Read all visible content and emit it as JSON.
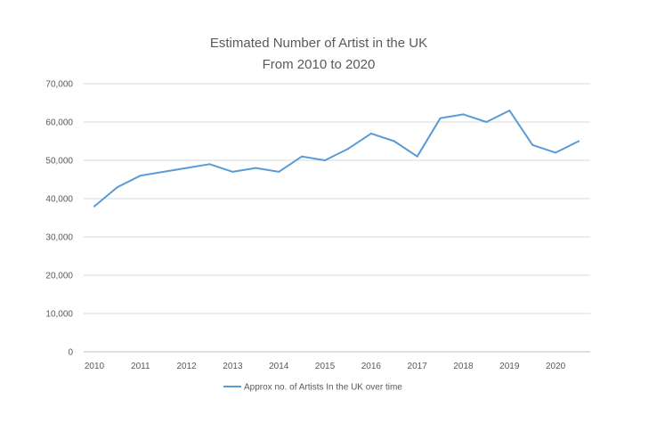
{
  "chart_data": {
    "type": "line",
    "title": "Estimated Number of Artist in the UK",
    "subtitle": "From 2010 to 2020",
    "xlabel": "",
    "ylabel": "",
    "ylim": [
      0,
      70000
    ],
    "yticks": [
      0,
      10000,
      20000,
      30000,
      40000,
      50000,
      60000,
      70000
    ],
    "ytick_labels": [
      "0",
      "10,000",
      "20,000",
      "30,000",
      "40,000",
      "50,000",
      "60,000",
      "70,000"
    ],
    "xtick_labels": [
      "2010",
      "2011",
      "2012",
      "2013",
      "2014",
      "2015",
      "2016",
      "2017",
      "2018",
      "2019",
      "2020"
    ],
    "x": [
      2010,
      2010.5,
      2011,
      2011.5,
      2012,
      2012.5,
      2013,
      2013.5,
      2014,
      2014.5,
      2015,
      2015.5,
      2016,
      2016.5,
      2017,
      2017.5,
      2018,
      2018.5,
      2019,
      2019.5,
      2020,
      2020.5
    ],
    "series": [
      {
        "name": "Approx no. of Artists In the UK over time",
        "color": "#5b9bd5",
        "values": [
          38000,
          43000,
          46000,
          47000,
          48000,
          49000,
          47000,
          48000,
          47000,
          51000,
          50000,
          53000,
          57000,
          55000,
          51000,
          61000,
          62000,
          60000,
          63000,
          54000,
          52000,
          55000
        ]
      }
    ],
    "grid": true,
    "legend_position": "bottom"
  }
}
